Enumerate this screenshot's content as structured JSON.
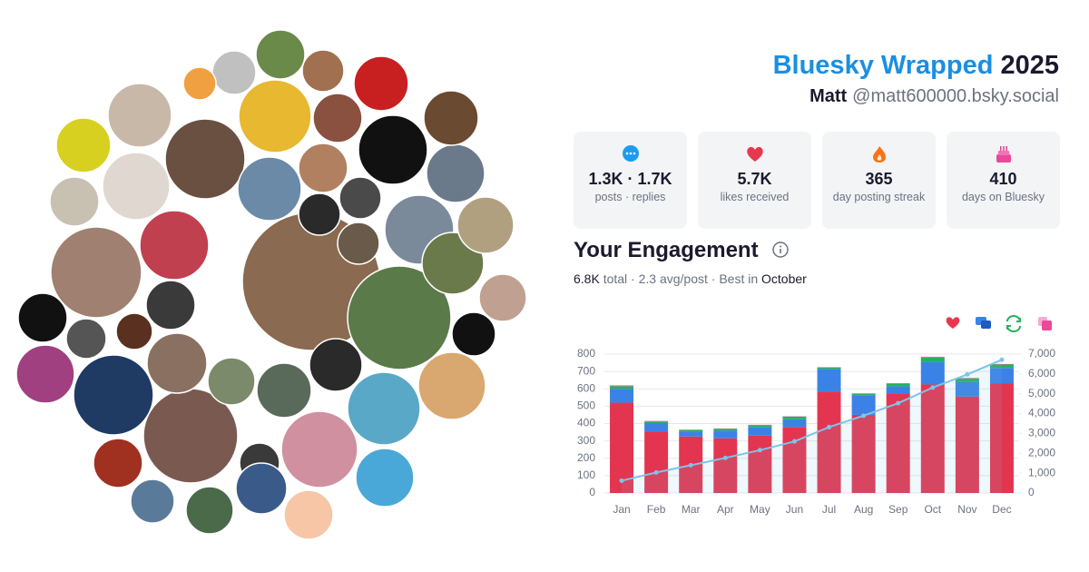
{
  "header": {
    "title": "Bluesky Wrapped",
    "year": "2025",
    "name": "Matt",
    "handle": "@matt600000.bsky.social"
  },
  "stats": [
    {
      "value": "1.3K · 1.7K",
      "label": "posts · replies"
    },
    {
      "value": "5.7K",
      "label": "likes received"
    },
    {
      "value": "365",
      "label": "day posting streak"
    },
    {
      "value": "410",
      "label": "days on Bluesky"
    }
  ],
  "engagement": {
    "title": "Your Engagement",
    "total": "6.8K",
    "summary": "total · 2.3 avg/post · Best in",
    "best": "October"
  },
  "chart_data": {
    "type": "bar",
    "stacked": true,
    "grid": true,
    "categories": [
      "Jan",
      "Feb",
      "Mar",
      "Apr",
      "May",
      "Jun",
      "Jul",
      "Aug",
      "Sep",
      "Oct",
      "Nov",
      "Dec"
    ],
    "series": [
      {
        "color": "#e3354f",
        "values": [
          520,
          355,
          325,
          315,
          330,
          380,
          585,
          450,
          570,
          625,
          555,
          630
        ]
      },
      {
        "color": "#3b82e6",
        "values": [
          80,
          45,
          30,
          45,
          50,
          45,
          130,
          110,
          45,
          130,
          85,
          90
        ]
      },
      {
        "color": "#22b35a",
        "values": [
          15,
          12,
          8,
          10,
          10,
          15,
          8,
          12,
          15,
          25,
          20,
          20
        ]
      },
      {
        "color": "#e85aa8",
        "values": [
          5,
          3,
          2,
          2,
          3,
          2,
          2,
          2,
          2,
          5,
          3,
          3
        ]
      },
      {
        "type": "line",
        "axis": "y2",
        "color": "#7cc4ea",
        "values": [
          620,
          1035,
          1400,
          1770,
          2160,
          2600,
          3320,
          3895,
          4525,
          5315,
          5975,
          6715
        ]
      }
    ],
    "ylim": [
      0,
      800
    ],
    "yticks": [
      0,
      100,
      200,
      300,
      400,
      500,
      600,
      700,
      800
    ],
    "y2lim": [
      0,
      7000
    ],
    "y2ticks": [
      0,
      {
        "value": 1000,
        "label": "1,000"
      },
      {
        "value": 2000,
        "label": "2,000"
      },
      {
        "value": 3000,
        "label": "3,000"
      },
      {
        "value": 4000,
        "label": "4,000"
      },
      {
        "value": 5000,
        "label": "5,000"
      },
      {
        "value": 6000,
        "label": "6,000"
      },
      {
        "value": 7000,
        "label": "7,000"
      }
    ]
  }
}
